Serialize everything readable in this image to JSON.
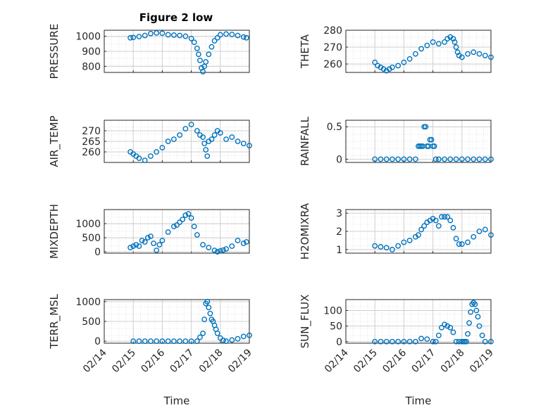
{
  "title": "Figure 2 low",
  "marker_color": "#0072BD",
  "x_ticks": [
    "02/14",
    "02/15",
    "02/16",
    "02/17",
    "02/18",
    "02/19"
  ],
  "x_label": "Time",
  "chart_data": [
    {
      "type": "scatter",
      "ylabel": "PRESSURE",
      "ylim": [
        760,
        1040
      ],
      "yticks": [
        "800",
        "900",
        "1000"
      ],
      "ytick_values": [
        800,
        900,
        1000
      ],
      "xlim": [
        0,
        5
      ],
      "grid": true,
      "x": [
        0.9,
        1.0,
        1.2,
        1.4,
        1.6,
        1.8,
        2.0,
        2.2,
        2.4,
        2.6,
        2.8,
        3.0,
        3.1,
        3.2,
        3.25,
        3.3,
        3.35,
        3.4,
        3.45,
        3.5,
        3.6,
        3.7,
        3.8,
        3.9,
        4.0,
        4.2,
        4.4,
        4.6,
        4.8,
        4.9
      ],
      "y": [
        990,
        992,
        998,
        1005,
        1018,
        1022,
        1020,
        1010,
        1008,
        1005,
        1000,
        985,
        960,
        920,
        880,
        840,
        790,
        765,
        800,
        830,
        880,
        930,
        970,
        990,
        1010,
        1015,
        1012,
        1005,
        995,
        990
      ]
    },
    {
      "type": "scatter",
      "ylabel": "THETA",
      "ylim": [
        255,
        280
      ],
      "yticks": [
        "260",
        "270",
        "280"
      ],
      "ytick_values": [
        260,
        270,
        280
      ],
      "xlim": [
        0,
        5
      ],
      "grid": true,
      "x": [
        1.0,
        1.1,
        1.2,
        1.3,
        1.4,
        1.5,
        1.6,
        1.8,
        2.0,
        2.2,
        2.4,
        2.6,
        2.8,
        3.0,
        3.2,
        3.4,
        3.5,
        3.6,
        3.7,
        3.75,
        3.8,
        3.85,
        3.9,
        4.0,
        4.2,
        4.4,
        4.6,
        4.8,
        5.0
      ],
      "y": [
        261,
        259,
        258,
        257,
        256,
        257,
        258,
        259,
        261,
        263,
        266,
        269,
        271,
        273,
        272,
        273,
        275,
        276,
        275,
        273,
        270,
        267,
        265,
        264,
        266,
        267,
        266,
        265,
        264
      ]
    },
    {
      "type": "scatter",
      "ylabel": "AIR_TEMP",
      "ylim": [
        255,
        275
      ],
      "yticks": [
        "260",
        "265",
        "270"
      ],
      "ytick_values": [
        260,
        265,
        270
      ],
      "xlim": [
        0,
        5
      ],
      "grid": true,
      "x": [
        0.9,
        1.0,
        1.1,
        1.2,
        1.4,
        1.6,
        1.8,
        2.0,
        2.2,
        2.4,
        2.6,
        2.8,
        3.0,
        3.2,
        3.3,
        3.4,
        3.45,
        3.5,
        3.55,
        3.6,
        3.7,
        3.8,
        3.9,
        4.0,
        4.2,
        4.4,
        4.6,
        4.8,
        5.0
      ],
      "y": [
        260,
        259,
        258,
        257,
        256,
        258,
        260,
        262,
        265,
        266,
        268,
        271,
        273,
        270,
        268,
        267,
        264,
        261,
        258,
        265,
        266,
        268,
        270,
        269,
        266,
        267,
        265,
        264,
        263
      ]
    },
    {
      "type": "scatter",
      "ylabel": "RAINFALL",
      "ylim": [
        -0.05,
        0.6
      ],
      "yticks": [
        "0",
        "0.5"
      ],
      "ytick_values": [
        0,
        0.5
      ],
      "xlim": [
        0,
        5
      ],
      "grid": true,
      "x": [
        1.0,
        1.2,
        1.4,
        1.6,
        1.8,
        2.0,
        2.2,
        2.4,
        2.5,
        2.55,
        2.6,
        2.65,
        2.7,
        2.75,
        2.8,
        2.85,
        2.9,
        2.95,
        3.0,
        3.05,
        3.1,
        3.2,
        3.4,
        3.6,
        3.8,
        4.0,
        4.2,
        4.4,
        4.6,
        4.8,
        5.0
      ],
      "y": [
        0,
        0,
        0,
        0,
        0,
        0,
        0,
        0,
        0.2,
        0.2,
        0.2,
        0.2,
        0.5,
        0.5,
        0.2,
        0.2,
        0.3,
        0.3,
        0.2,
        0.2,
        0,
        0,
        0,
        0,
        0,
        0,
        0,
        0,
        0,
        0,
        0
      ]
    },
    {
      "type": "scatter",
      "ylabel": "MIXDEPTH",
      "ylim": [
        -50,
        1500
      ],
      "yticks": [
        "0",
        "500",
        "1000"
      ],
      "ytick_values": [
        0,
        500,
        1000
      ],
      "xlim": [
        0,
        5
      ],
      "grid": true,
      "x": [
        0.9,
        1.0,
        1.1,
        1.2,
        1.3,
        1.4,
        1.5,
        1.6,
        1.7,
        1.8,
        1.9,
        2.0,
        2.2,
        2.4,
        2.5,
        2.6,
        2.7,
        2.8,
        2.9,
        3.0,
        3.1,
        3.2,
        3.4,
        3.6,
        3.8,
        3.9,
        4.0,
        4.1,
        4.2,
        4.4,
        4.6,
        4.8,
        4.9
      ],
      "y": [
        150,
        200,
        250,
        200,
        400,
        350,
        500,
        550,
        300,
        50,
        250,
        400,
        700,
        900,
        950,
        1050,
        1150,
        1300,
        1350,
        1200,
        900,
        600,
        250,
        150,
        50,
        0,
        30,
        60,
        100,
        200,
        400,
        300,
        350
      ]
    },
    {
      "type": "scatter",
      "ylabel": "H2OMIXRA",
      "ylim": [
        0.8,
        3.2
      ],
      "yticks": [
        "1",
        "2",
        "3"
      ],
      "ytick_values": [
        1,
        2,
        3
      ],
      "xlim": [
        0,
        5
      ],
      "grid": true,
      "x": [
        1.0,
        1.2,
        1.4,
        1.6,
        1.8,
        2.0,
        2.2,
        2.4,
        2.5,
        2.6,
        2.7,
        2.8,
        2.9,
        3.0,
        3.1,
        3.2,
        3.3,
        3.4,
        3.5,
        3.6,
        3.7,
        3.8,
        3.9,
        4.0,
        4.2,
        4.4,
        4.6,
        4.8,
        5.0
      ],
      "y": [
        1.2,
        1.15,
        1.1,
        1.0,
        1.2,
        1.4,
        1.5,
        1.7,
        1.8,
        2.1,
        2.3,
        2.5,
        2.6,
        2.7,
        2.6,
        2.3,
        2.8,
        2.8,
        2.8,
        2.6,
        2.2,
        1.6,
        1.3,
        1.3,
        1.4,
        1.7,
        2.0,
        2.1,
        1.8
      ]
    },
    {
      "type": "scatter",
      "ylabel": "TERR_MSL",
      "ylim": [
        -50,
        1050
      ],
      "yticks": [
        "0",
        "500",
        "1000"
      ],
      "ytick_values": [
        0,
        500,
        1000
      ],
      "xlim": [
        0,
        5
      ],
      "grid": true,
      "x": [
        1.0,
        1.2,
        1.4,
        1.6,
        1.8,
        2.0,
        2.2,
        2.4,
        2.6,
        2.8,
        3.0,
        3.2,
        3.3,
        3.4,
        3.45,
        3.5,
        3.55,
        3.6,
        3.65,
        3.7,
        3.75,
        3.8,
        3.85,
        3.9,
        4.0,
        4.1,
        4.2,
        4.4,
        4.6,
        4.8,
        5.0
      ],
      "y": [
        0,
        0,
        0,
        0,
        0,
        0,
        0,
        0,
        0,
        0,
        0,
        0,
        100,
        200,
        550,
        950,
        1000,
        850,
        700,
        550,
        500,
        400,
        300,
        200,
        80,
        20,
        0,
        30,
        60,
        120,
        150
      ]
    },
    {
      "type": "scatter",
      "ylabel": "SUN_FLUX",
      "ylim": [
        -5,
        135
      ],
      "yticks": [
        "0",
        "50",
        "100"
      ],
      "ytick_values": [
        0,
        50,
        100
      ],
      "xlim": [
        0,
        5
      ],
      "grid": true,
      "x": [
        1.0,
        1.2,
        1.4,
        1.6,
        1.8,
        2.0,
        2.2,
        2.4,
        2.6,
        2.8,
        3.0,
        3.1,
        3.2,
        3.3,
        3.4,
        3.5,
        3.6,
        3.7,
        3.8,
        3.9,
        4.0,
        4.05,
        4.1,
        4.15,
        4.2,
        4.25,
        4.3,
        4.35,
        4.4,
        4.45,
        4.5,
        4.55,
        4.6,
        4.7,
        4.8,
        5.0
      ],
      "y": [
        0,
        0,
        0,
        0,
        0,
        0,
        0,
        0,
        10,
        8,
        0,
        0,
        20,
        45,
        55,
        50,
        45,
        30,
        0,
        0,
        0,
        0,
        0,
        0,
        25,
        60,
        95,
        120,
        125,
        120,
        100,
        80,
        50,
        20,
        0,
        0
      ]
    }
  ]
}
